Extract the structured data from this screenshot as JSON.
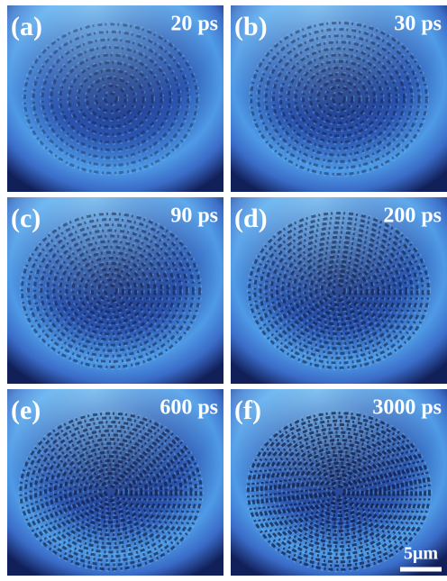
{
  "panels": [
    {
      "label": "(a)",
      "time": "20 ps"
    },
    {
      "label": "(b)",
      "time": "30 ps"
    },
    {
      "label": "(c)",
      "time": "90 ps"
    },
    {
      "label": "(d)",
      "time": "200 ps"
    },
    {
      "label": "(e)",
      "time": "600 ps"
    },
    {
      "label": "(f)",
      "time": "3000 ps"
    }
  ],
  "scale_bar": "5μm"
}
